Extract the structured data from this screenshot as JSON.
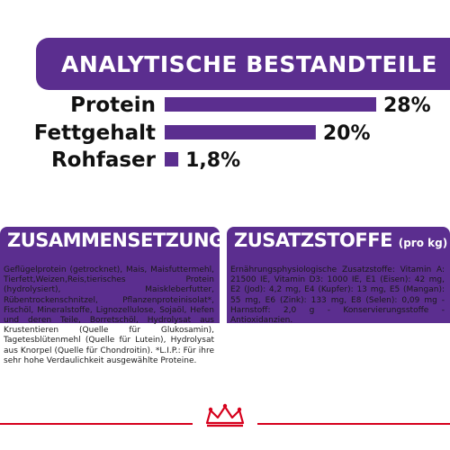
{
  "header": {
    "title": "ANALYTISCHE BESTANDTEILE"
  },
  "chart_data": {
    "type": "bar",
    "orientation": "horizontal",
    "categories": [
      "Protein",
      "Fettgehalt",
      "Rohfaser"
    ],
    "values": [
      28,
      20,
      1.8
    ],
    "value_labels": [
      "28%",
      "20%",
      "1,8%"
    ],
    "unit": "%",
    "color": "#5b2e8f",
    "grid": false,
    "legend": "none"
  },
  "composition": {
    "title": "ZUSAMMENSETZUNG",
    "text": "Geflügelprotein (getrocknet), Mais, Maisfuttermehl, Tierfett,Weizen,Reis,tierisches Protein (hydrolysiert), Maiskleberfutter, Rübentrockenschnitzel, Pflanzenproteinisolat*, Fischöl, Mineralstoffe, Lignozellulose, Sojaöl, Hefen und deren Teile, Borretschöl, Hydrolysat aus Krustentieren (Quelle für Glukosamin), Tagetesblütenmehl (Quelle für Lutein), Hydrolysat aus Knorpel (Quelle für Chondroitin). *L.I.P.: Für ihre sehr hohe Verdaulichkeit ausgewählte Proteine."
  },
  "additives": {
    "title": "ZUSATZSTOFFE",
    "title_suffix": "(pro kg)",
    "text": "Ernährungsphysiologische Zusatzstoffe: Vitamin A: 21500 IE, Vitamin D3: 1000 IE, E1 (Eisen): 42 mg, E2 (Jod): 4,2 mg, E4 (Kupfer): 13 mg, E5 (Mangan): 55 mg, E6 (Zink): 133 mg, E8 (Selen): 0,09 mg - Harnstoff: 2,0 g - Konservierungsstoffe - Antioxidanzien."
  },
  "colors": {
    "brand_purple": "#5b2e8f",
    "brand_red": "#d6001c"
  },
  "footer": {
    "logo_icon": "crown-icon"
  }
}
